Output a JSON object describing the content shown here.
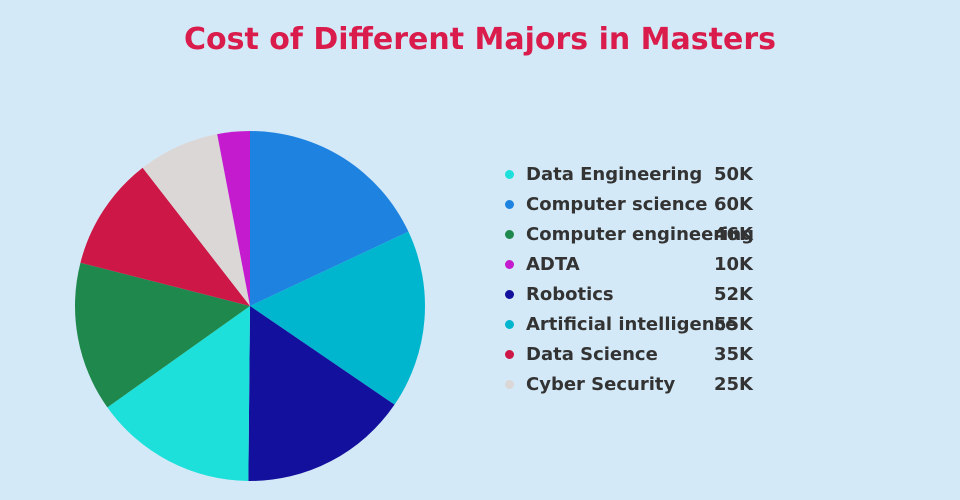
{
  "chart_data": {
    "type": "pie",
    "title": "Cost of Different Majors in Masters",
    "legend_position": "right",
    "slices": [
      {
        "label": "Computer science",
        "value": 60,
        "value_label": "60K",
        "color": "#1e82e0"
      },
      {
        "label": "Artificial intelligence",
        "value": 55,
        "value_label": "55K",
        "color": "#00b6cf"
      },
      {
        "label": "Robotics",
        "value": 52,
        "value_label": "52K",
        "color": "#13109e"
      },
      {
        "label": "Data Engineering",
        "value": 50,
        "value_label": "50K",
        "color": "#1de0da"
      },
      {
        "label": "Computer engineering",
        "value": 46,
        "value_label": "46K",
        "color": "#1f894d"
      },
      {
        "label": "Data Science",
        "value": 35,
        "value_label": "35K",
        "color": "#cd1746"
      },
      {
        "label": "Cyber Security",
        "value": 25,
        "value_label": "25K",
        "color": "#dcd7d7"
      },
      {
        "label": "ADTA",
        "value": 10,
        "value_label": "10K",
        "color": "#c51bce"
      }
    ],
    "legend_order": [
      "Data Engineering",
      "Computer science",
      "Computer engineering",
      "ADTA",
      "Robotics",
      "Artificial intelligence",
      "Data Science",
      "Cyber Security"
    ]
  }
}
